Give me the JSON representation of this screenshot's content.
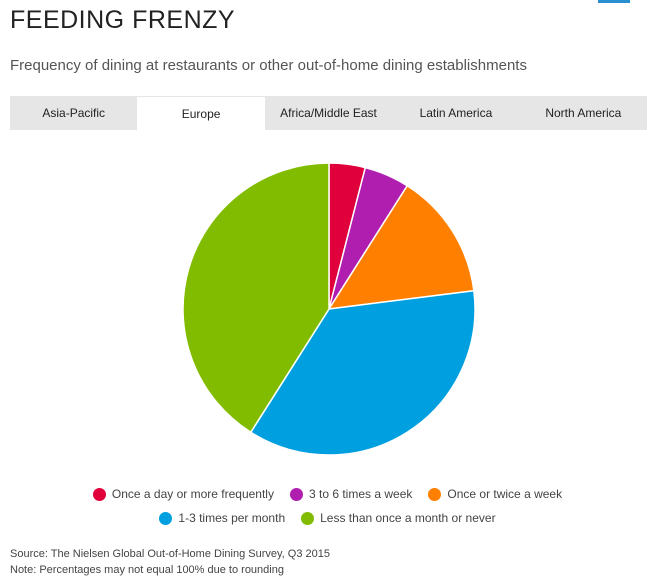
{
  "header": {
    "title": "FEEDING FRENZY",
    "subtitle": "Frequency of dining at restaurants or other out-of-home dining establishments"
  },
  "tabs": [
    {
      "label": "Asia-Pacific",
      "active": false
    },
    {
      "label": "Europe",
      "active": true
    },
    {
      "label": "Africa/Middle East",
      "active": false
    },
    {
      "label": "Latin America",
      "active": false
    },
    {
      "label": "North America",
      "active": false
    }
  ],
  "chart_data": {
    "type": "pie",
    "title": "",
    "series": [
      {
        "name": "Once a day or more frequently",
        "value": 4,
        "color": "#e0003c"
      },
      {
        "name": "3 to 6 times a week",
        "value": 5,
        "color": "#b01eb0"
      },
      {
        "name": "Once or twice a week",
        "value": 14,
        "color": "#ff8000"
      },
      {
        "name": "1-3 times per month",
        "value": 36,
        "color": "#009fdf"
      },
      {
        "name": "Less than once a month or never",
        "value": 41,
        "color": "#82bc00"
      }
    ],
    "start_angle": "top",
    "direction": "clockwise",
    "legend_position": "bottom"
  },
  "footer": {
    "source": "Source: The Nielsen Global Out-of-Home Dining Survey, Q3 2015",
    "note": "Note: Percentages may not equal 100% due to rounding"
  }
}
